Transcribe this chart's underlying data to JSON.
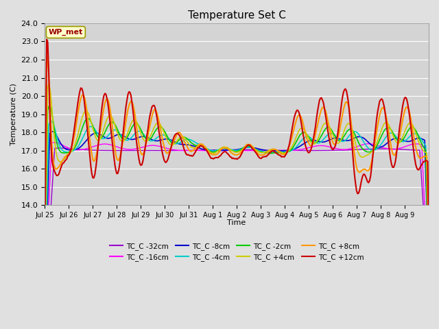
{
  "title": "Temperature Set C",
  "xlabel": "Time",
  "ylabel": "Temperature (C)",
  "ylim": [
    14.0,
    24.0
  ],
  "yticks": [
    14.0,
    15.0,
    16.0,
    17.0,
    18.0,
    19.0,
    20.0,
    21.0,
    22.0,
    23.0,
    24.0
  ],
  "fig_bg": "#e0e0e0",
  "plot_bg": "#d4d4d4",
  "series_colors": {
    "TC_C -32cm": "#9900cc",
    "TC_C -16cm": "#ff00ff",
    "TC_C -8cm": "#0000cc",
    "TC_C -4cm": "#00cccc",
    "TC_C -2cm": "#00cc00",
    "TC_C +4cm": "#cccc00",
    "TC_C +8cm": "#ff9900",
    "TC_C +12cm": "#cc0000"
  },
  "annotation_text": "WP_met",
  "annotation_color": "#990000",
  "annotation_bg": "#ffffcc",
  "annotation_edge": "#999900",
  "tick_labels": [
    "Jul 25",
    "Jul 26",
    "Jul 27",
    "Jul 28",
    "Jul 29",
    "Jul 30",
    "Jul 31",
    "Aug 1",
    "Aug 2",
    "Aug 3",
    "Aug 4",
    "Aug 5",
    "Aug 6",
    "Aug 7",
    "Aug 8",
    "Aug 9"
  ],
  "legend_order": [
    "TC_C -32cm",
    "TC_C -16cm",
    "TC_C -8cm",
    "TC_C -4cm",
    "TC_C -2cm",
    "TC_C +4cm",
    "TC_C +8cm",
    "TC_C +12cm"
  ]
}
